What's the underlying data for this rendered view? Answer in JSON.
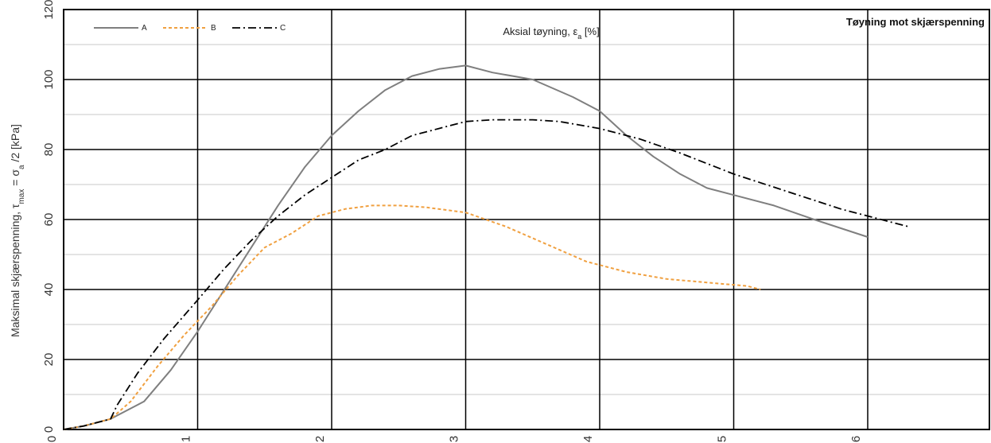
{
  "chart_data": {
    "type": "line",
    "title": "Tøyning mot skjærspenning",
    "xlabel": "Aksial tøyning, εa [%]",
    "ylabel": "Maksimal skjærspenning, τmax = σa /2  [kPa]",
    "xlim": [
      0,
      6.8
    ],
    "ylim": [
      0,
      120
    ],
    "x_ticks": [
      "0",
      "1",
      "2",
      "3",
      "4",
      "5",
      "6"
    ],
    "y_ticks": [
      "0",
      "20",
      "40",
      "60",
      "80",
      "100",
      "120"
    ],
    "grid": true,
    "legend_position": "top-left",
    "series": [
      {
        "name": "A",
        "color": "#7f7f7f",
        "style": "solid",
        "points": [
          [
            0,
            0
          ],
          [
            0.15,
            1
          ],
          [
            0.35,
            3
          ],
          [
            0.6,
            8
          ],
          [
            0.8,
            17
          ],
          [
            1.0,
            28
          ],
          [
            1.2,
            40
          ],
          [
            1.4,
            52
          ],
          [
            1.6,
            64
          ],
          [
            1.8,
            75
          ],
          [
            2.0,
            84
          ],
          [
            2.2,
            91
          ],
          [
            2.4,
            97
          ],
          [
            2.6,
            101
          ],
          [
            2.8,
            103
          ],
          [
            3.0,
            104
          ],
          [
            3.2,
            102
          ],
          [
            3.5,
            100
          ],
          [
            3.8,
            95
          ],
          [
            4.0,
            91
          ],
          [
            4.2,
            84
          ],
          [
            4.4,
            78
          ],
          [
            4.6,
            73
          ],
          [
            4.8,
            69
          ],
          [
            5.0,
            67
          ],
          [
            5.3,
            64
          ],
          [
            5.6,
            60
          ],
          [
            6.0,
            55
          ]
        ]
      },
      {
        "name": "B",
        "color": "#f0a040",
        "style": "dashed",
        "points": [
          [
            0,
            0
          ],
          [
            0.15,
            1
          ],
          [
            0.35,
            3
          ],
          [
            0.5,
            8
          ],
          [
            0.7,
            18
          ],
          [
            0.9,
            27
          ],
          [
            1.1,
            35
          ],
          [
            1.3,
            44
          ],
          [
            1.5,
            52
          ],
          [
            1.7,
            56
          ],
          [
            1.9,
            61
          ],
          [
            2.1,
            63
          ],
          [
            2.3,
            64
          ],
          [
            2.5,
            64
          ],
          [
            2.7,
            63.5
          ],
          [
            3.0,
            62
          ],
          [
            3.3,
            58
          ],
          [
            3.6,
            53
          ],
          [
            3.9,
            48
          ],
          [
            4.2,
            45
          ],
          [
            4.5,
            43
          ],
          [
            4.8,
            42
          ],
          [
            5.1,
            41
          ],
          [
            5.2,
            40
          ]
        ]
      },
      {
        "name": "C",
        "color": "#000000",
        "style": "dashdot",
        "points": [
          [
            0,
            0
          ],
          [
            0.15,
            1
          ],
          [
            0.35,
            3
          ],
          [
            0.4,
            7
          ],
          [
            0.55,
            16
          ],
          [
            0.75,
            26
          ],
          [
            1.0,
            37
          ],
          [
            1.2,
            46
          ],
          [
            1.4,
            54
          ],
          [
            1.6,
            61
          ],
          [
            1.8,
            67
          ],
          [
            2.0,
            72
          ],
          [
            2.2,
            77
          ],
          [
            2.4,
            80
          ],
          [
            2.6,
            84
          ],
          [
            2.8,
            86
          ],
          [
            3.0,
            88
          ],
          [
            3.2,
            88.5
          ],
          [
            3.5,
            88.5
          ],
          [
            3.7,
            88
          ],
          [
            4.0,
            86
          ],
          [
            4.3,
            83
          ],
          [
            4.6,
            79
          ],
          [
            5.0,
            73
          ],
          [
            5.4,
            68
          ],
          [
            5.8,
            63
          ],
          [
            6.0,
            61
          ],
          [
            6.3,
            58
          ]
        ]
      }
    ]
  }
}
